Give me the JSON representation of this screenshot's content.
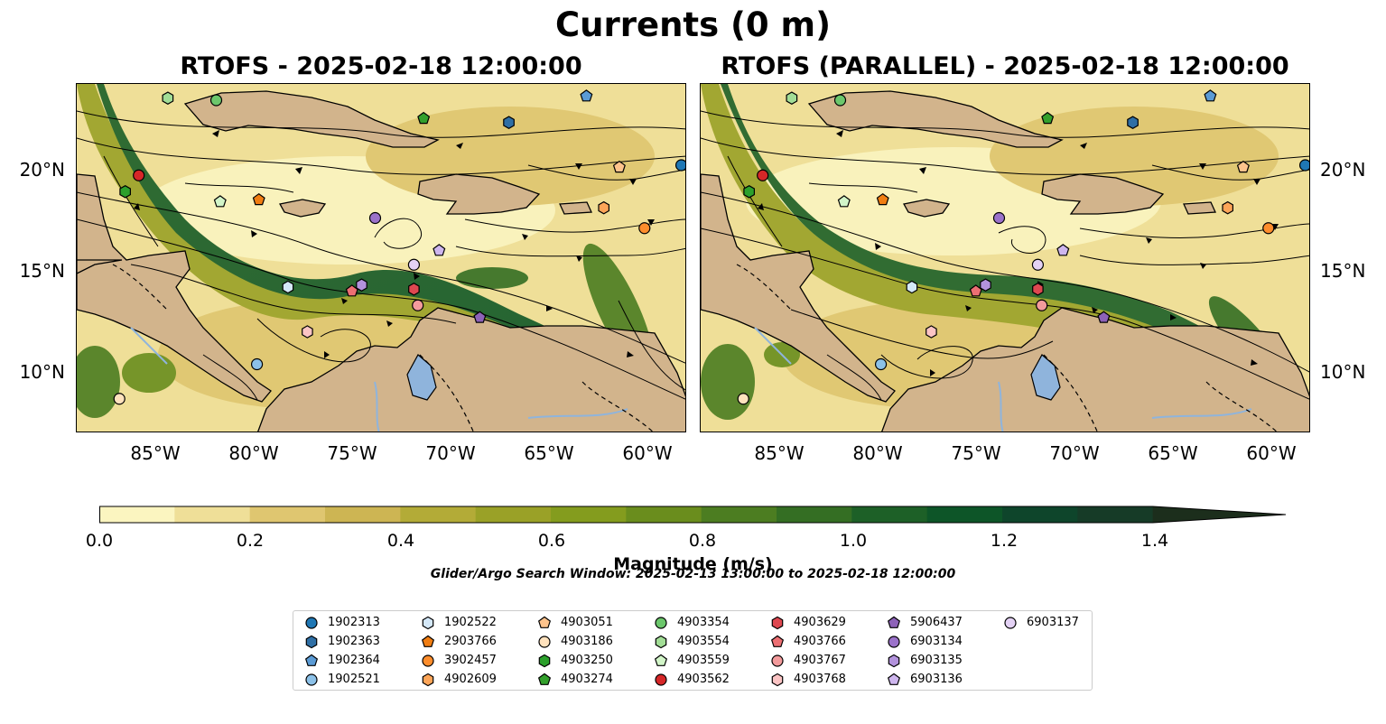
{
  "figure": {
    "title": "Currents (0 m)",
    "left_panel_title": "RTOFS - 2025-02-18 12:00:00",
    "right_panel_title": "RTOFS (PARALLEL) - 2025-02-18 12:00:00",
    "lat_ticks": [
      "20°N",
      "15°N",
      "10°N"
    ],
    "lon_ticks": [
      "85°W",
      "80°W",
      "75°W",
      "70°W",
      "65°W",
      "60°W"
    ],
    "colorbar": {
      "label": "Magnitude (m/s)",
      "ticks": [
        "0.0",
        "0.2",
        "0.4",
        "0.6",
        "0.8",
        "1.0",
        "1.2",
        "1.4"
      ],
      "min": 0.0,
      "max": 1.5,
      "extend": "max",
      "colors": [
        "#fbf5c0",
        "#efdf98",
        "#dfc670",
        "#cdb553",
        "#b3ab37",
        "#9aa127",
        "#849c1e",
        "#6a8d1d",
        "#4c7d21",
        "#346e23",
        "#1d6027",
        "#0d5528",
        "#0e452b",
        "#163b27",
        "#1c2e1c"
      ]
    },
    "search_window": "Glider/Argo Search Window: 2025-02-13 13:00:00 to 2025-02-18 12:00:00",
    "colors": {
      "land": "#d2b48c",
      "lake": "#8fb4dc",
      "streamline": "#000000"
    }
  },
  "legend": [
    {
      "id": "1902313",
      "marker": "circle",
      "color": "#1f77b4"
    },
    {
      "id": "1902363",
      "marker": "hexagon",
      "color": "#2f6fa5"
    },
    {
      "id": "1902364",
      "marker": "pentagon",
      "color": "#5b9bd5"
    },
    {
      "id": "1902521",
      "marker": "circle",
      "color": "#8cc1e8"
    },
    {
      "id": "1902522",
      "marker": "hexagon",
      "color": "#d4e8f8"
    },
    {
      "id": "2903766",
      "marker": "pentagon",
      "color": "#f07d12"
    },
    {
      "id": "3902457",
      "marker": "circle",
      "color": "#fd8d2c"
    },
    {
      "id": "4902609",
      "marker": "hexagon",
      "color": "#fda558"
    },
    {
      "id": "4903051",
      "marker": "pentagon",
      "color": "#fdc38c"
    },
    {
      "id": "4903186",
      "marker": "circle",
      "color": "#ffe2bd"
    },
    {
      "id": "4903250",
      "marker": "hexagon",
      "color": "#2ca02c"
    },
    {
      "id": "4903274",
      "marker": "pentagon",
      "color": "#33a02c"
    },
    {
      "id": "4903354",
      "marker": "circle",
      "color": "#6cc76c"
    },
    {
      "id": "4903554",
      "marker": "hexagon",
      "color": "#a2dd96"
    },
    {
      "id": "4903559",
      "marker": "pentagon",
      "color": "#d2f5c8"
    },
    {
      "id": "4903562",
      "marker": "circle",
      "color": "#d62728"
    },
    {
      "id": "4903629",
      "marker": "hexagon",
      "color": "#de4850"
    },
    {
      "id": "4903766",
      "marker": "pentagon",
      "color": "#ec6f73"
    },
    {
      "id": "4903767",
      "marker": "circle",
      "color": "#f39b9c"
    },
    {
      "id": "4903768",
      "marker": "hexagon",
      "color": "#fbc4c4"
    },
    {
      "id": "5906437",
      "marker": "pentagon",
      "color": "#8d62b8"
    },
    {
      "id": "6903134",
      "marker": "circle",
      "color": "#9b72ca"
    },
    {
      "id": "6903135",
      "marker": "hexagon",
      "color": "#b292dc"
    },
    {
      "id": "6903136",
      "marker": "pentagon",
      "color": "#ceb6ee"
    },
    {
      "id": "6903137",
      "marker": "circle",
      "color": "#e4d2f5"
    }
  ],
  "floats_left": [
    {
      "id": "1902313",
      "lon": -58.1,
      "lat": 20.2
    },
    {
      "id": "1902363",
      "lon": -67.0,
      "lat": 22.3
    },
    {
      "id": "1902364",
      "lon": -63.0,
      "lat": 23.6
    },
    {
      "id": "1902521",
      "lon": -80.0,
      "lat": 10.4
    },
    {
      "id": "1902522",
      "lon": -78.4,
      "lat": 14.2
    },
    {
      "id": "2903766",
      "lon": -79.9,
      "lat": 18.5
    },
    {
      "id": "3902457",
      "lon": -60.0,
      "lat": 17.1
    },
    {
      "id": "4902609",
      "lon": -62.1,
      "lat": 18.1
    },
    {
      "id": "4903051",
      "lon": -61.3,
      "lat": 20.1
    },
    {
      "id": "4903186",
      "lon": -87.1,
      "lat": 8.7
    },
    {
      "id": "4903250",
      "lon": -86.8,
      "lat": 18.9
    },
    {
      "id": "4903274",
      "lon": -71.4,
      "lat": 22.5
    },
    {
      "id": "4903354",
      "lon": -82.1,
      "lat": 23.4
    },
    {
      "id": "4903554",
      "lon": -84.6,
      "lat": 23.5
    },
    {
      "id": "4903559",
      "lon": -81.9,
      "lat": 18.4
    },
    {
      "id": "4903562",
      "lon": -86.1,
      "lat": 19.7
    },
    {
      "id": "4903629",
      "lon": -71.9,
      "lat": 14.1
    },
    {
      "id": "4903766",
      "lon": -75.1,
      "lat": 14.0
    },
    {
      "id": "4903767",
      "lon": -71.7,
      "lat": 13.3
    },
    {
      "id": "4903768",
      "lon": -77.4,
      "lat": 12.0
    },
    {
      "id": "5906437",
      "lon": -68.5,
      "lat": 12.7
    },
    {
      "id": "6903134",
      "lon": -73.9,
      "lat": 17.6
    },
    {
      "id": "6903135",
      "lon": -74.6,
      "lat": 14.3
    },
    {
      "id": "6903136",
      "lon": -70.6,
      "lat": 16.0
    },
    {
      "id": "6903137",
      "lon": -71.9,
      "lat": 15.3
    }
  ],
  "floats_right": [
    {
      "id": "1902313",
      "lon": -58.1,
      "lat": 20.2
    },
    {
      "id": "1902363",
      "lon": -67.0,
      "lat": 22.3
    },
    {
      "id": "1902364",
      "lon": -63.0,
      "lat": 23.6
    },
    {
      "id": "1902521",
      "lon": -80.0,
      "lat": 10.4
    },
    {
      "id": "1902522",
      "lon": -78.4,
      "lat": 14.2
    },
    {
      "id": "2903766",
      "lon": -79.9,
      "lat": 18.5
    },
    {
      "id": "3902457",
      "lon": -60.0,
      "lat": 17.1
    },
    {
      "id": "4902609",
      "lon": -62.1,
      "lat": 18.1
    },
    {
      "id": "4903051",
      "lon": -61.3,
      "lat": 20.1
    },
    {
      "id": "4903186",
      "lon": -87.1,
      "lat": 8.7
    },
    {
      "id": "4903250",
      "lon": -86.8,
      "lat": 18.9
    },
    {
      "id": "4903274",
      "lon": -71.4,
      "lat": 22.5
    },
    {
      "id": "4903354",
      "lon": -82.1,
      "lat": 23.4
    },
    {
      "id": "4903554",
      "lon": -84.6,
      "lat": 23.5
    },
    {
      "id": "4903559",
      "lon": -81.9,
      "lat": 18.4
    },
    {
      "id": "4903562",
      "lon": -86.1,
      "lat": 19.7
    },
    {
      "id": "4903629",
      "lon": -71.9,
      "lat": 14.1
    },
    {
      "id": "4903766",
      "lon": -75.1,
      "lat": 14.0
    },
    {
      "id": "4903767",
      "lon": -71.7,
      "lat": 13.3
    },
    {
      "id": "4903768",
      "lon": -77.4,
      "lat": 12.0
    },
    {
      "id": "5906437",
      "lon": -68.5,
      "lat": 12.7
    },
    {
      "id": "6903134",
      "lon": -73.9,
      "lat": 17.6
    },
    {
      "id": "6903135",
      "lon": -74.6,
      "lat": 14.3
    },
    {
      "id": "6903136",
      "lon": -70.6,
      "lat": 16.0
    },
    {
      "id": "6903137",
      "lon": -71.9,
      "lat": 15.3
    }
  ]
}
